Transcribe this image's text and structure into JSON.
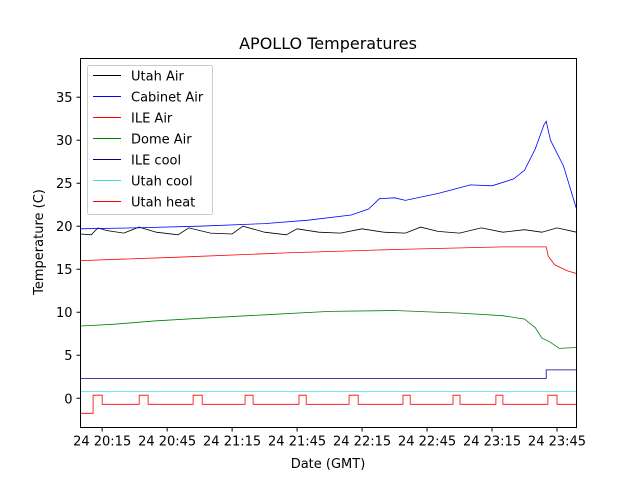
{
  "chart_data": {
    "type": "line",
    "title": "APOLLO Temperatures",
    "xlabel": "Date (GMT)",
    "ylabel": "Temperature (C)",
    "x_units": "minutes after 20:00 GMT on day 24",
    "xlim": [
      5,
      234
    ],
    "ylim": [
      -3.4,
      39.5
    ],
    "grid": false,
    "legend_position": "top-left",
    "x_ticks": [
      {
        "value": 15,
        "label": "24 20:15"
      },
      {
        "value": 45,
        "label": "24 20:45"
      },
      {
        "value": 75,
        "label": "24 21:15"
      },
      {
        "value": 105,
        "label": "24 21:45"
      },
      {
        "value": 135,
        "label": "24 22:15"
      },
      {
        "value": 165,
        "label": "24 22:45"
      },
      {
        "value": 195,
        "label": "24 23:15"
      },
      {
        "value": 225,
        "label": "24 23:45"
      }
    ],
    "y_ticks": [
      {
        "value": 0,
        "label": "0"
      },
      {
        "value": 5,
        "label": "5"
      },
      {
        "value": 10,
        "label": "10"
      },
      {
        "value": 15,
        "label": "15"
      },
      {
        "value": 20,
        "label": "20"
      },
      {
        "value": 25,
        "label": "25"
      },
      {
        "value": 30,
        "label": "30"
      },
      {
        "value": 35,
        "label": "35"
      }
    ],
    "series": [
      {
        "name": "Utah Air",
        "color": "#000000",
        "points": [
          [
            5,
            19.1
          ],
          [
            10,
            19
          ],
          [
            13,
            19.8
          ],
          [
            17,
            19.5
          ],
          [
            25,
            19.2
          ],
          [
            32,
            19.9
          ],
          [
            40,
            19.3
          ],
          [
            50,
            19
          ],
          [
            55,
            19.8
          ],
          [
            65,
            19.2
          ],
          [
            75,
            19.1
          ],
          [
            80,
            20
          ],
          [
            90,
            19.3
          ],
          [
            100,
            19.0
          ],
          [
            105,
            19.7
          ],
          [
            115,
            19.3
          ],
          [
            125,
            19.2
          ],
          [
            135,
            19.7
          ],
          [
            145,
            19.3
          ],
          [
            155,
            19.2
          ],
          [
            162,
            19.9
          ],
          [
            170,
            19.4
          ],
          [
            180,
            19.2
          ],
          [
            190,
            19.8
          ],
          [
            200,
            19.3
          ],
          [
            210,
            19.6
          ],
          [
            218,
            19.3
          ],
          [
            225,
            19.8
          ],
          [
            234,
            19.3
          ]
        ]
      },
      {
        "name": "Cabinet Air",
        "color": "#0000ff",
        "points": [
          [
            5,
            19.7
          ],
          [
            30,
            19.8
          ],
          [
            60,
            20
          ],
          [
            90,
            20.3
          ],
          [
            110,
            20.7
          ],
          [
            130,
            21.3
          ],
          [
            138,
            22
          ],
          [
            143,
            23.2
          ],
          [
            150,
            23.3
          ],
          [
            155,
            23
          ],
          [
            170,
            23.8
          ],
          [
            185,
            24.8
          ],
          [
            195,
            24.7
          ],
          [
            205,
            25.5
          ],
          [
            210,
            26.5
          ],
          [
            215,
            29
          ],
          [
            219,
            31.8
          ],
          [
            220,
            32.2
          ],
          [
            222,
            30
          ],
          [
            228,
            27
          ],
          [
            231,
            24.5
          ],
          [
            234,
            22
          ]
        ]
      },
      {
        "name": "ILE Air",
        "color": "#ff0000",
        "points": [
          [
            5,
            16
          ],
          [
            50,
            16.4
          ],
          [
            100,
            16.9
          ],
          [
            150,
            17.3
          ],
          [
            200,
            17.6
          ],
          [
            220,
            17.6
          ],
          [
            221,
            16.5
          ],
          [
            224,
            15.5
          ],
          [
            230,
            14.8
          ],
          [
            234,
            14.5
          ]
        ]
      },
      {
        "name": "Dome Air",
        "color": "#008000",
        "points": [
          [
            5,
            8.4
          ],
          [
            20,
            8.6
          ],
          [
            40,
            9
          ],
          [
            60,
            9.3
          ],
          [
            90,
            9.7
          ],
          [
            120,
            10.1
          ],
          [
            150,
            10.2
          ],
          [
            180,
            9.9
          ],
          [
            200,
            9.6
          ],
          [
            210,
            9.2
          ],
          [
            215,
            8.2
          ],
          [
            218,
            7
          ],
          [
            222,
            6.5
          ],
          [
            226,
            5.8
          ],
          [
            234,
            5.9
          ]
        ]
      },
      {
        "name": "ILE cool",
        "color": "#000080",
        "points": [
          [
            5,
            2.3
          ],
          [
            220,
            2.3
          ],
          [
            220,
            3.3
          ],
          [
            234,
            3.3
          ]
        ]
      },
      {
        "name": "Utah cool",
        "color": "#40e0e0",
        "points": [
          [
            5,
            0.8
          ],
          [
            234,
            0.8
          ]
        ]
      },
      {
        "name": "Utah heat",
        "color": "#ff0000",
        "points": [
          [
            5,
            -1.75
          ],
          [
            10.8,
            -1.75
          ],
          [
            10.8,
            0.35
          ],
          [
            15,
            0.35
          ],
          [
            15,
            -0.7
          ],
          [
            32.1,
            -0.7
          ],
          [
            32.1,
            0.35
          ],
          [
            36.2,
            0.35
          ],
          [
            36.2,
            -0.7
          ],
          [
            57,
            -0.7
          ],
          [
            57,
            0.35
          ],
          [
            61.2,
            0.35
          ],
          [
            61.2,
            -0.7
          ],
          [
            81,
            -0.7
          ],
          [
            81,
            0.35
          ],
          [
            84.7,
            0.35
          ],
          [
            84.7,
            -0.7
          ],
          [
            105.9,
            -0.7
          ],
          [
            105.9,
            0.35
          ],
          [
            109.2,
            0.35
          ],
          [
            109.2,
            -0.7
          ],
          [
            129,
            -0.7
          ],
          [
            129,
            0.35
          ],
          [
            133.2,
            0.35
          ],
          [
            133.2,
            -0.7
          ],
          [
            153.9,
            -0.7
          ],
          [
            153.9,
            0.35
          ],
          [
            157.2,
            0.35
          ],
          [
            157.2,
            -0.7
          ],
          [
            177,
            -0.7
          ],
          [
            177,
            0.35
          ],
          [
            180.2,
            0.35
          ],
          [
            180.2,
            -0.7
          ],
          [
            196.8,
            -0.7
          ],
          [
            196.8,
            0.35
          ],
          [
            200,
            0.35
          ],
          [
            200,
            -0.7
          ],
          [
            220.8,
            -0.7
          ],
          [
            220.8,
            0.35
          ],
          [
            225,
            0.35
          ],
          [
            225,
            -0.7
          ],
          [
            234,
            -0.7
          ]
        ]
      }
    ]
  }
}
